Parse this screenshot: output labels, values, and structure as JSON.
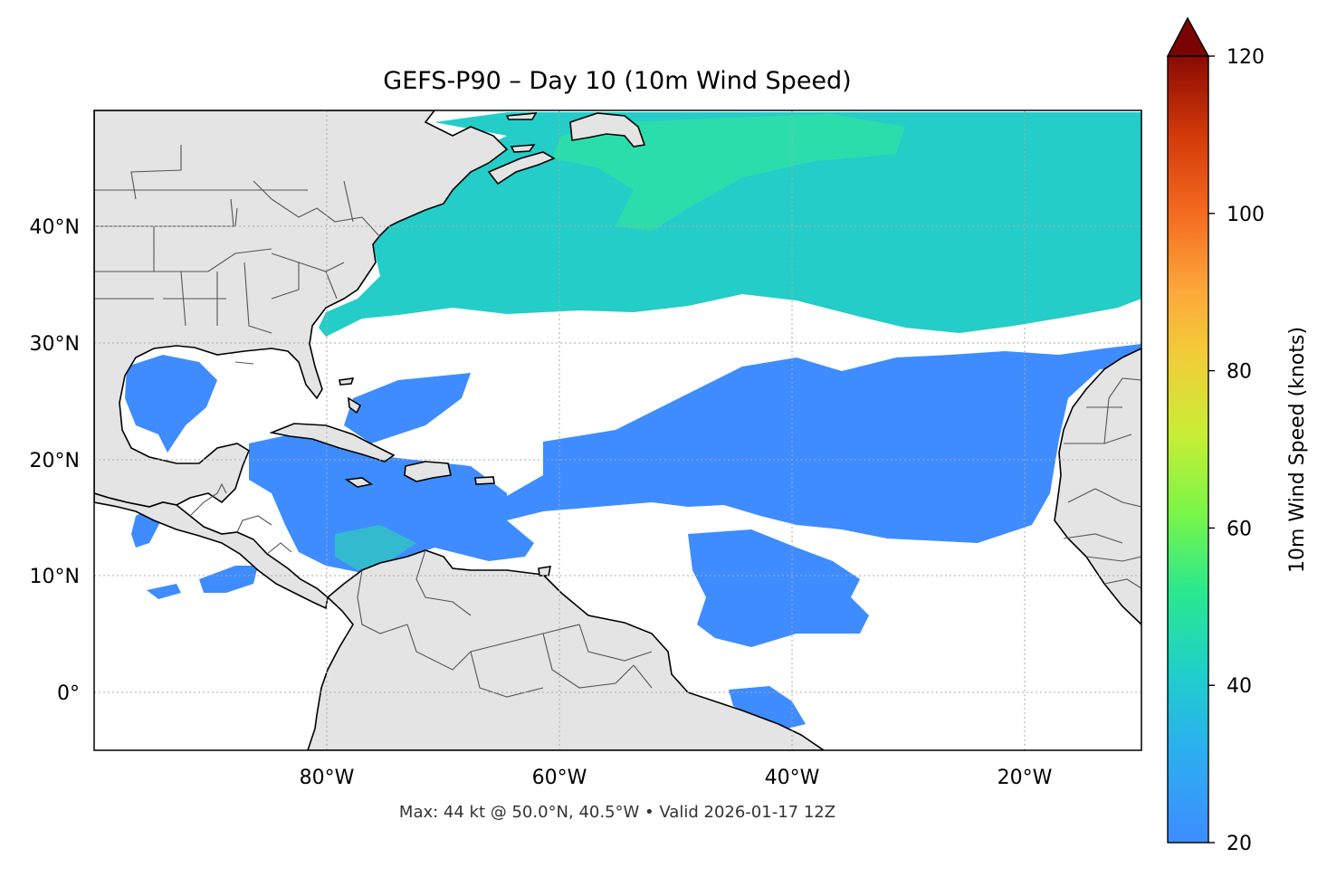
{
  "title": "GEFS-P90 – Day 10 (10m Wind Speed)",
  "footer": "Max: 44 kt @ 50.0°N, 40.5°W • Valid 2026-01-17 12Z",
  "map": {
    "lon_range": [
      -100,
      -10
    ],
    "lat_range": [
      -5,
      50
    ],
    "lon_ticks": [
      {
        "value": -80,
        "label": "80°W"
      },
      {
        "value": -60,
        "label": "60°W"
      },
      {
        "value": -40,
        "label": "40°W"
      },
      {
        "value": -20,
        "label": "20°W"
      }
    ],
    "lat_ticks": [
      {
        "value": 40,
        "label": "40°N"
      },
      {
        "value": 30,
        "label": "30°N"
      },
      {
        "value": 20,
        "label": "20°N"
      },
      {
        "value": 10,
        "label": "10°N"
      },
      {
        "value": 0,
        "label": "0°"
      }
    ],
    "gridlines": "dotted",
    "land_color": "#e4e4e4",
    "ocean_color": "#ffffff"
  },
  "colorbar": {
    "label": "10m Wind Speed (knots)",
    "range": [
      20,
      120
    ],
    "extend": "max",
    "ticks": [
      {
        "value": 20,
        "label": "20"
      },
      {
        "value": 40,
        "label": "40"
      },
      {
        "value": 60,
        "label": "60"
      },
      {
        "value": 80,
        "label": "80"
      },
      {
        "value": 100,
        "label": "100"
      },
      {
        "value": 120,
        "label": "120"
      }
    ],
    "colormap": [
      "#3e8cff",
      "#1fc8d8",
      "#27ea88",
      "#9bf93a",
      "#e3d82f",
      "#fba53a",
      "#ef5c1c",
      "#c72a04",
      "#7a0403"
    ]
  }
}
